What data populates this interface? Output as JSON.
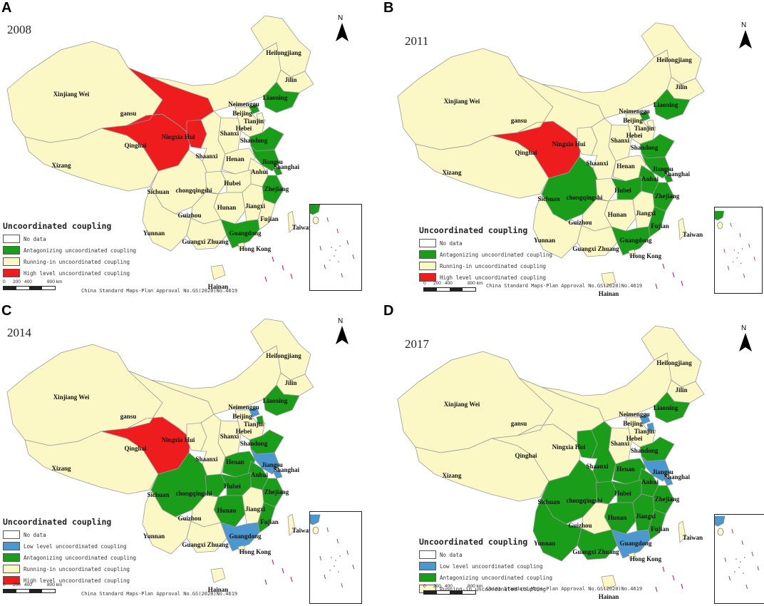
{
  "colors": {
    "no_data": "#ffffff",
    "low": "#4a98cf",
    "antagonizing": "#1a9e1a",
    "running_in": "#fbf8c6",
    "high": "#ee1c1c",
    "border": "#9a9a9a"
  },
  "legend_title": "Uncoordinated coupling",
  "approval_text": "China Standard Maps-Plan Approval No.GS(2020)No.4619",
  "scale_labels": [
    "0",
    "200",
    "400",
    "800 km"
  ],
  "north_label": "N",
  "province_names": {
    "xinjiang": "Xinjiang Wei",
    "xizang": "Xizang",
    "qinghai": "Qinghai",
    "gansu": "gansu",
    "ningxia": "Ningxia Hui",
    "neimenggu": "Neimenggu",
    "heilongjiang": "Heilongjiang",
    "jilin": "Jilin",
    "liaoning": "Liaoning",
    "beijing": "Beijing",
    "tianjin": "Tianjin",
    "hebei": "Hebei",
    "shanxi": "Shanxi",
    "shandong": "Shandong",
    "shaanxi": "Shaanxi",
    "henan": "Henan",
    "jiangsu": "Jiangsu",
    "shanghai": "Shanghai",
    "anhui": "Anhui",
    "sichuan": "Sichuan",
    "chongqing": "chongqingshi",
    "hubei": "Hubei",
    "zhejiang": "Zhejiang",
    "hunan": "Hunan",
    "jiangxi": "Jiangxi",
    "fujian": "Fujian",
    "guizhou": "Guizhou",
    "yunnan": "Yunnan",
    "guangxi": "Guangxi Zhuang",
    "guangdong": "Guangdong",
    "hongkong": "Hong Kong",
    "taiwan": "Taiwan",
    "hainan": "Hainan"
  },
  "panels": [
    {
      "letter": "A",
      "year": "2008",
      "legend": [
        {
          "label": "No data",
          "cat": "no_data"
        },
        {
          "label": "Antagonizing uncoordinated coupling",
          "cat": "antagonizing"
        },
        {
          "label": "Running-in uncoordinated coupling",
          "cat": "running_in"
        },
        {
          "label": "High level uncoordinated coupling",
          "cat": "high"
        }
      ],
      "provinces": {
        "qinghai": "high",
        "gansu": "high",
        "ningxia": "high",
        "liaoning": "antagonizing",
        "shandong": "antagonizing",
        "jiangsu": "antagonizing",
        "zhejiang": "antagonizing",
        "guangdong": "antagonizing",
        "beijing": "antagonizing",
        "shanghai": "antagonizing"
      }
    },
    {
      "letter": "B",
      "year": "2011",
      "legend": [
        {
          "label": "No data",
          "cat": "no_data"
        },
        {
          "label": "Antagonizing uncoordinated coupling",
          "cat": "antagonizing"
        },
        {
          "label": "Running-in uncoordinated coupling",
          "cat": "running_in"
        },
        {
          "label": "High level uncoordinated coupling",
          "cat": "high"
        }
      ],
      "provinces": {
        "qinghai": "high",
        "liaoning": "antagonizing",
        "shandong": "antagonizing",
        "jiangsu": "antagonizing",
        "zhejiang": "antagonizing",
        "guangdong": "antagonizing",
        "beijing": "antagonizing",
        "sichuan": "antagonizing",
        "hubei": "antagonizing",
        "anhui": "antagonizing",
        "fujian": "antagonizing",
        "shanghai": "antagonizing"
      }
    },
    {
      "letter": "C",
      "year": "2014",
      "legend": [
        {
          "label": "No data",
          "cat": "no_data"
        },
        {
          "label": "Low level uncoordinated coupling",
          "cat": "low"
        },
        {
          "label": "Antagonizing uncoordinated coupling",
          "cat": "antagonizing"
        },
        {
          "label": "Running-in uncoordinated coupling",
          "cat": "running_in"
        },
        {
          "label": "High level uncoordinated coupling",
          "cat": "high"
        }
      ],
      "provinces": {
        "qinghai": "high",
        "beijing": "low",
        "jiangsu": "low",
        "shanghai": "low",
        "guangdong": "low",
        "liaoning": "antagonizing",
        "shandong": "antagonizing",
        "tianjin": "antagonizing",
        "zhejiang": "antagonizing",
        "sichuan": "antagonizing",
        "chongqing": "antagonizing",
        "hubei": "antagonizing",
        "hunan": "antagonizing",
        "anhui": "antagonizing",
        "fujian": "antagonizing",
        "henan": "antagonizing"
      }
    },
    {
      "letter": "D",
      "year": "2017",
      "legend": [
        {
          "label": "No data",
          "cat": "no_data"
        },
        {
          "label": "Low level uncoordinated coupling",
          "cat": "low"
        },
        {
          "label": "Antagonizing uncoordinated coupling",
          "cat": "antagonizing"
        },
        {
          "label": "Running-in uncoordinated coupling",
          "cat": "running_in"
        }
      ],
      "provinces": {
        "beijing": "low",
        "jiangsu": "low",
        "shanghai": "low",
        "guangdong": "low",
        "tianjin": "low",
        "liaoning": "antagonizing",
        "shandong": "antagonizing",
        "zhejiang": "antagonizing",
        "sichuan": "antagonizing",
        "chongqing": "antagonizing",
        "hubei": "antagonizing",
        "hunan": "antagonizing",
        "anhui": "antagonizing",
        "fujian": "antagonizing",
        "henan": "antagonizing",
        "shaanxi": "antagonizing",
        "ningxia": "antagonizing",
        "yunnan": "antagonizing",
        "jiangxi": "antagonizing",
        "guangxi": "antagonizing"
      }
    }
  ]
}
